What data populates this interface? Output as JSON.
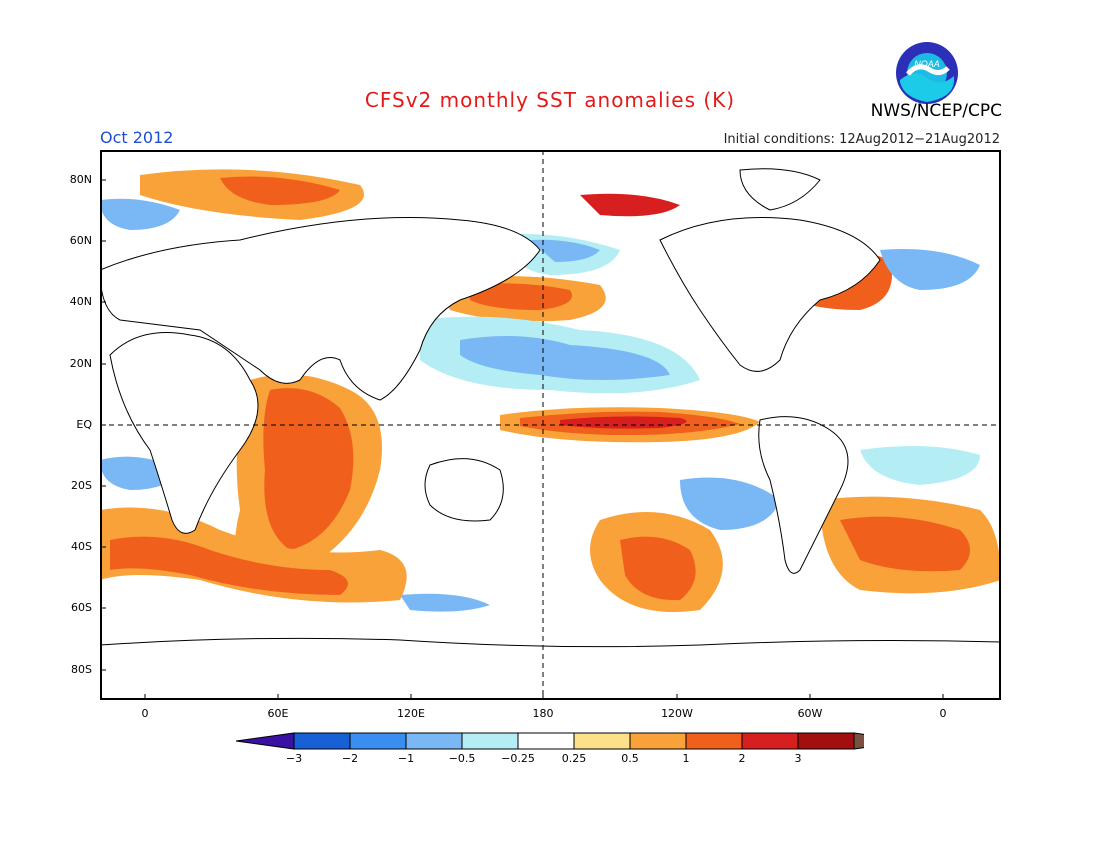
{
  "title": "CFSv2 monthly SST anomalies (K)",
  "valid_month": "Oct 2012",
  "initial_conditions": "Initial conditions: 12Aug2012−21Aug2012",
  "agency": "NWS/NCEP/CPC",
  "logo_text": "NOAA",
  "colors": {
    "title": "#e21a1a",
    "valid_month": "#1f4fd1",
    "logo_outer": "#2c2fb8",
    "logo_inner": "#1ccbe8"
  },
  "lat_labels": [
    "80N",
    "60N",
    "40N",
    "20N",
    "EQ",
    "20S",
    "40S",
    "60S",
    "80S"
  ],
  "lon_labels": [
    "0",
    "60E",
    "120E",
    "180",
    "120W",
    "60W",
    "0"
  ],
  "colorbar": {
    "labels": [
      "−3",
      "−2",
      "−1",
      "−0.5",
      "−0.25",
      "0.25",
      "0.5",
      "1",
      "2",
      "3"
    ],
    "colors": [
      "#3a12a3",
      "#1860d6",
      "#3a8ef0",
      "#7ab8f5",
      "#b4eef4",
      "#ffffff",
      "#fde08a",
      "#f9a23a",
      "#f0601c",
      "#d81f1f",
      "#a30f0f",
      "#7a5040"
    ]
  }
}
